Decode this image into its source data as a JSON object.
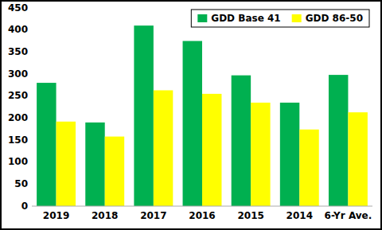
{
  "chart_data": {
    "type": "bar",
    "categories": [
      "2019",
      "2018",
      "2017",
      "2016",
      "2015",
      "2014",
      "6-Yr Ave."
    ],
    "series": [
      {
        "name": "GDD Base 41",
        "color": "#00b050",
        "values": [
          280,
          190,
          410,
          375,
          297,
          235,
          298
        ]
      },
      {
        "name": "GDD 86-50",
        "color": "#ffff00",
        "values": [
          192,
          158,
          263,
          255,
          235,
          174,
          213
        ]
      }
    ],
    "ylim": [
      0,
      450
    ],
    "yticks": [
      0,
      50,
      100,
      150,
      200,
      250,
      300,
      350,
      400,
      450
    ],
    "legend": "upper right",
    "grid": false
  }
}
